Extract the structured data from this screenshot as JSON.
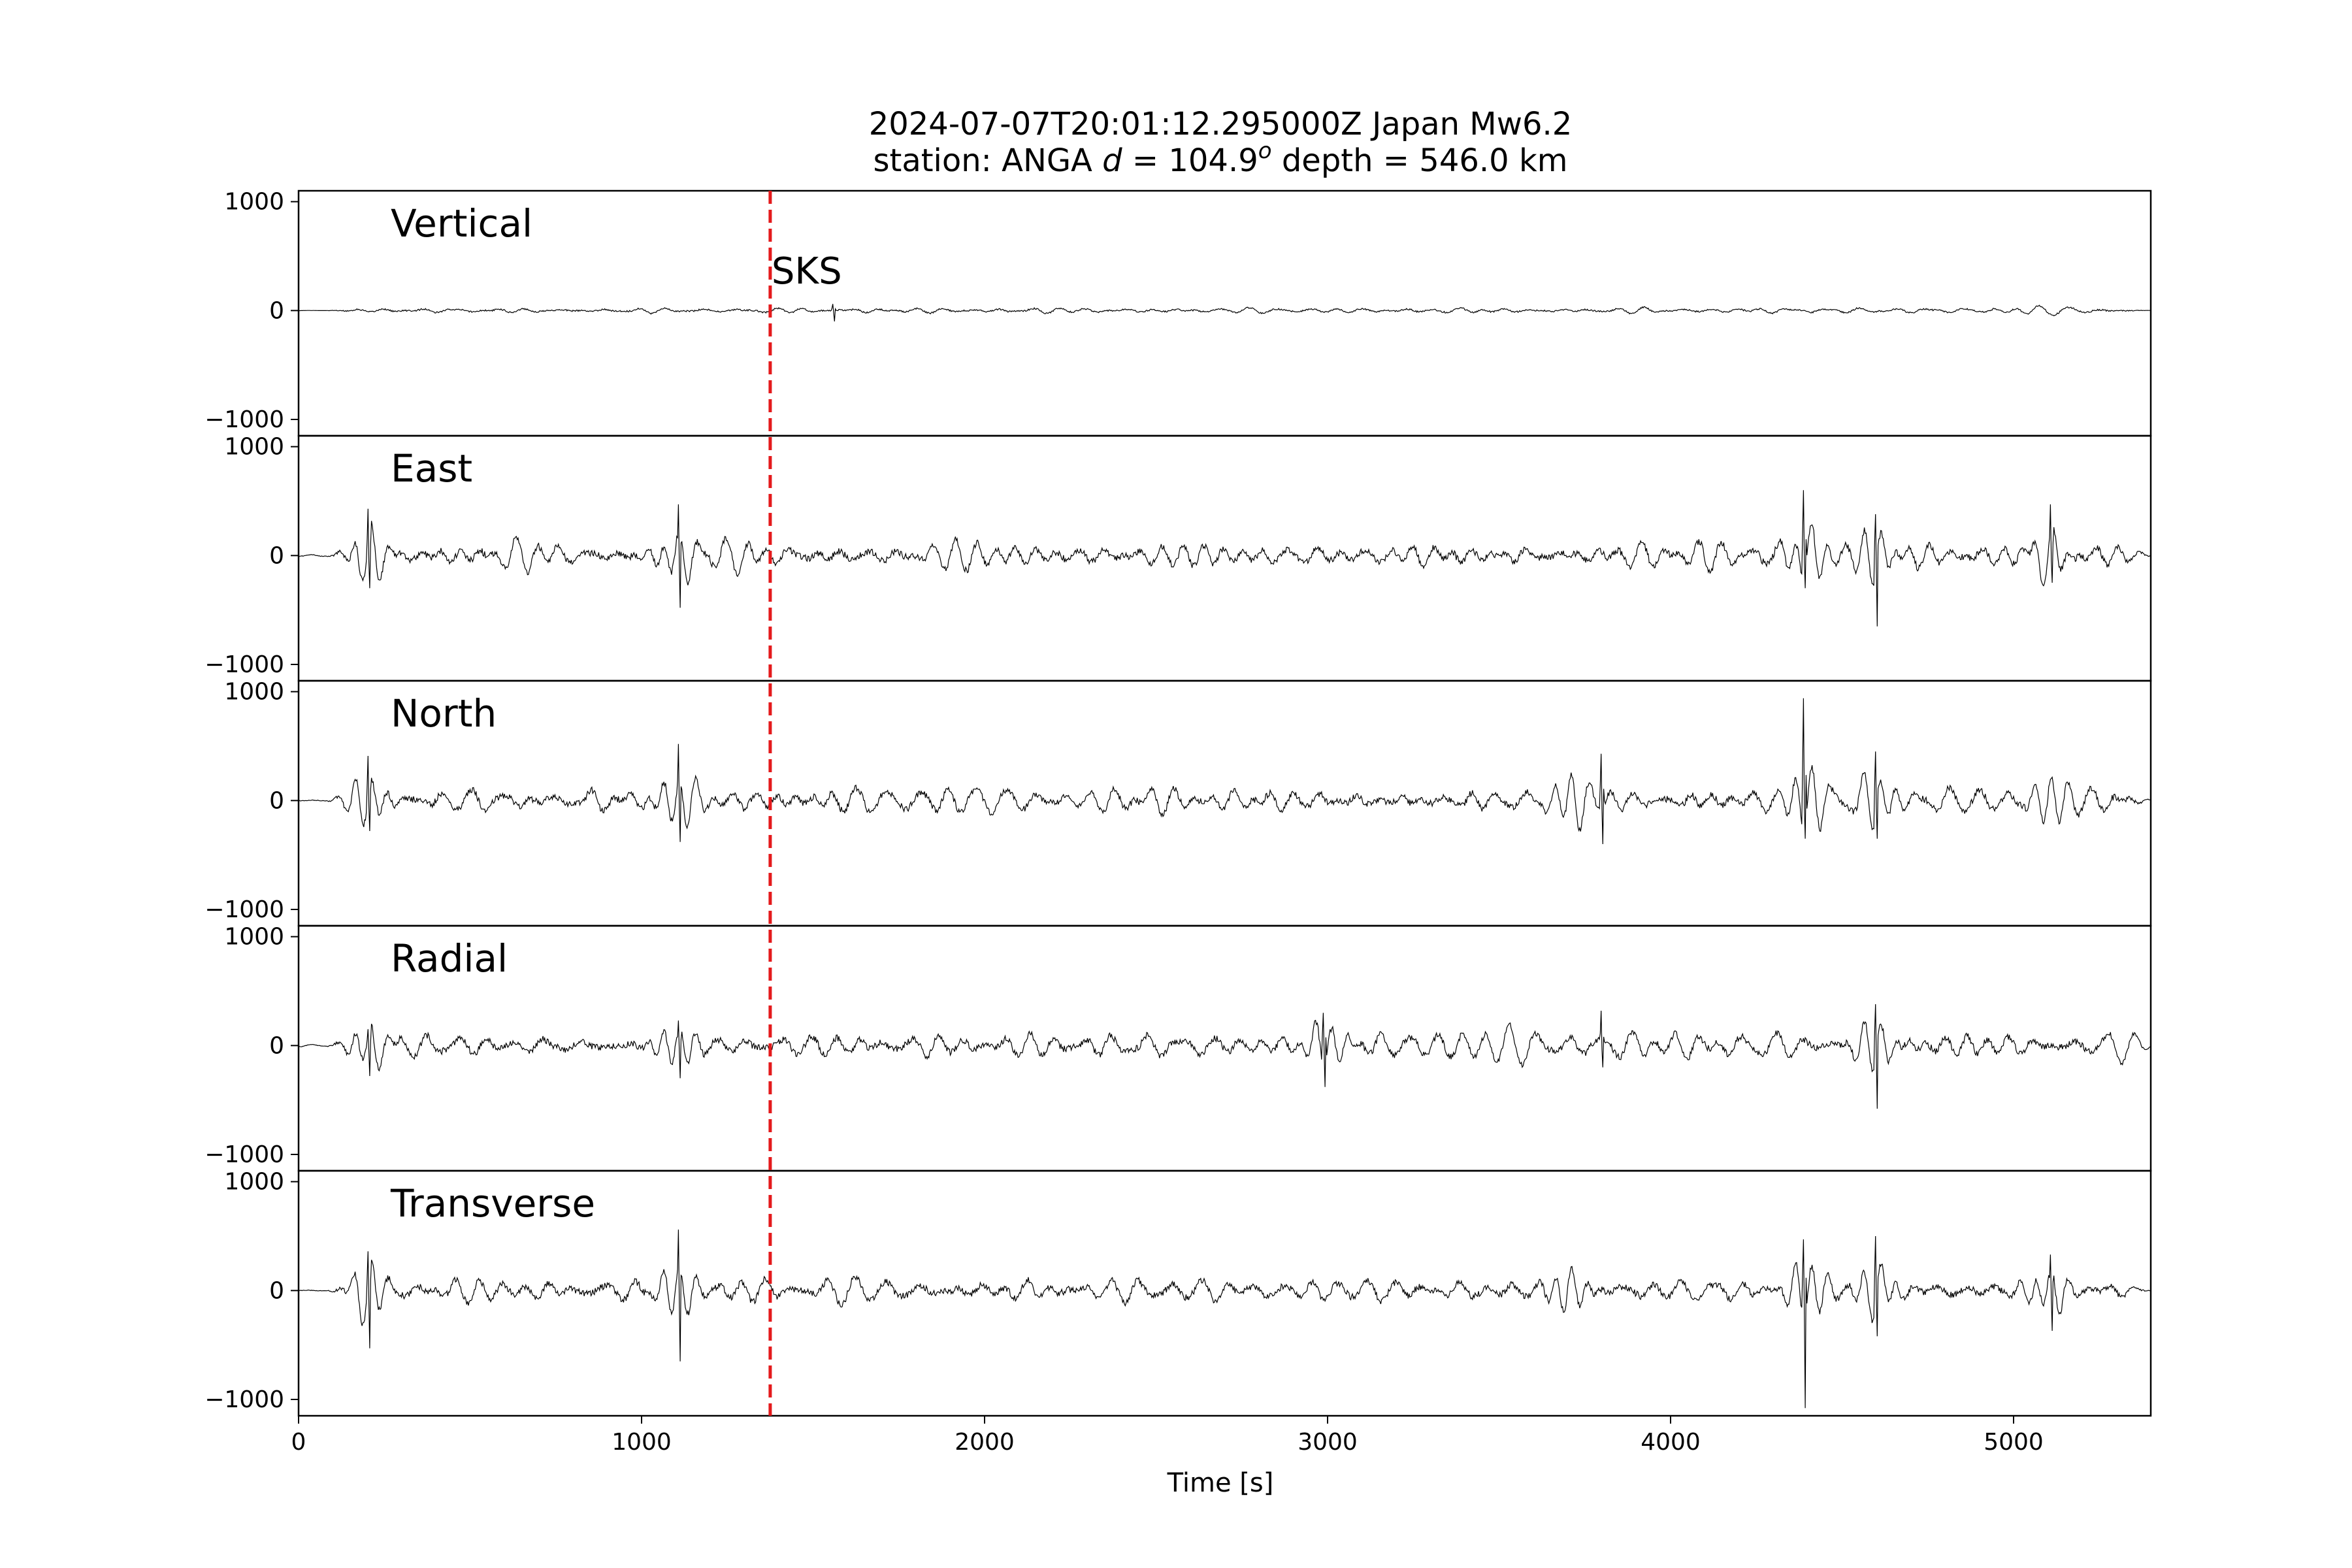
{
  "chart_data": {
    "type": "line",
    "title": {
      "line1": "2024-07-07T20:01:12.295000Z Japan Mw6.2",
      "line2_prefix": "station: ANGA ",
      "line2_d": "d",
      "line2_eq": " = 104.9",
      "line2_sup": "o",
      "line2_suffix": " depth = 546.0 km"
    },
    "xlabel": "Time [s]",
    "xlim": [
      0,
      5400
    ],
    "xticks": [
      0,
      1000,
      2000,
      3000,
      4000,
      5000
    ],
    "ylim": [
      -1150,
      1100
    ],
    "yticks": [
      -1000,
      0,
      1000
    ],
    "phase_marker": {
      "label": "SKS",
      "time": 1375,
      "color": "#e41a1c"
    },
    "trace_color": "#000000",
    "series": [
      {
        "name": "Vertical",
        "events": [],
        "peaks": [
          {
            "t": 1560,
            "max": 60,
            "min": -100
          }
        ]
      },
      {
        "name": "East",
        "events": [
          {
            "t": 200,
            "amp": 1.0
          },
          {
            "t": 1100,
            "amp": 1.0
          },
          {
            "t": 4400,
            "amp": 1.1
          },
          {
            "t": 4600,
            "amp": 1.0
          },
          {
            "t": 5100,
            "amp": 0.9
          }
        ],
        "peaks": [
          {
            "t": 205,
            "max": 430,
            "min": -300
          },
          {
            "t": 1110,
            "max": 470,
            "min": -480
          },
          {
            "t": 4390,
            "max": 600,
            "min": -300
          },
          {
            "t": 4600,
            "max": 380,
            "min": -650
          },
          {
            "t": 5110,
            "max": 470,
            "min": -250
          }
        ]
      },
      {
        "name": "North",
        "events": [
          {
            "t": 200,
            "amp": 0.9
          },
          {
            "t": 1100,
            "amp": 1.0
          },
          {
            "t": 3700,
            "amp": 0.9
          },
          {
            "t": 4400,
            "amp": 1.2
          },
          {
            "t": 4600,
            "amp": 1.0
          },
          {
            "t": 5100,
            "amp": 0.9
          }
        ],
        "peaks": [
          {
            "t": 205,
            "max": 410,
            "min": -280
          },
          {
            "t": 1110,
            "max": 520,
            "min": -380
          },
          {
            "t": 4390,
            "max": 940,
            "min": -350
          },
          {
            "t": 4600,
            "max": 450,
            "min": -350
          },
          {
            "t": 3800,
            "max": 430,
            "min": -400
          }
        ]
      },
      {
        "name": "Radial",
        "events": [
          {
            "t": 200,
            "amp": 0.8
          },
          {
            "t": 1100,
            "amp": 0.9
          },
          {
            "t": 3000,
            "amp": 1.0
          },
          {
            "t": 4600,
            "amp": 1.0
          }
        ],
        "peaks": [
          {
            "t": 205,
            "max": 150,
            "min": -280
          },
          {
            "t": 1110,
            "max": 230,
            "min": -300
          },
          {
            "t": 2990,
            "max": 300,
            "min": -380
          },
          {
            "t": 4600,
            "max": 380,
            "min": -580
          },
          {
            "t": 3800,
            "max": 320,
            "min": -200
          }
        ]
      },
      {
        "name": "Transverse",
        "events": [
          {
            "t": 200,
            "amp": 1.0
          },
          {
            "t": 1100,
            "amp": 1.0
          },
          {
            "t": 3700,
            "amp": 0.9
          },
          {
            "t": 4400,
            "amp": 1.2
          },
          {
            "t": 4600,
            "amp": 1.0
          },
          {
            "t": 5100,
            "amp": 0.9
          }
        ],
        "peaks": [
          {
            "t": 205,
            "max": 360,
            "min": -530
          },
          {
            "t": 1110,
            "max": 560,
            "min": -650
          },
          {
            "t": 4390,
            "max": 470,
            "min": -1080
          },
          {
            "t": 4600,
            "max": 500,
            "min": -420
          },
          {
            "t": 5110,
            "max": 330,
            "min": -370
          }
        ]
      }
    ]
  }
}
